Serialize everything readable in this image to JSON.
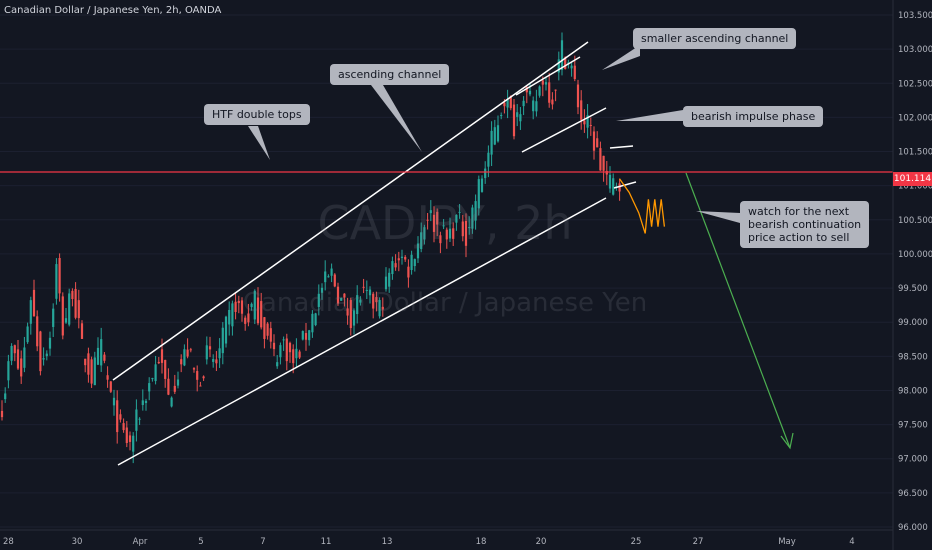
{
  "header": {
    "symbol_title": "Canadian Dollar / Japanese Yen, 2h, OANDA"
  },
  "watermark": {
    "main": "CADJPY, 2h",
    "sub": "Canadian Dollar / Japanese Yen"
  },
  "annotations": {
    "htf_double_tops": "HTF double tops",
    "ascending_channel": "ascending channel",
    "smaller_channel": "smaller ascending channel",
    "bearish_impulse": "bearish impulse phase",
    "watch_next": "watch for the next\nbearish continuation\nprice action to sell"
  },
  "colors": {
    "background": "#131722",
    "bull": "#26a69a",
    "bear": "#ef5350",
    "level_line": "#f23645",
    "projection": "#ff9800",
    "arrow": "#4caf50",
    "trendline": "#ffffff",
    "annotation_bg": "#b2b5be"
  },
  "chart_data": {
    "type": "candlestick",
    "instrument": "Canadian Dollar / Japanese Yen",
    "timeframe": "2h",
    "source": "OANDA",
    "x_tick_labels": [
      "28",
      "30",
      "Apr",
      "5",
      "7",
      "11",
      "13",
      "18",
      "20",
      "25",
      "27",
      "May",
      "4"
    ],
    "y_tick_labels": [
      "103.500",
      "103.000",
      "102.500",
      "102.000",
      "101.500",
      "101.000",
      "100.500",
      "100.000",
      "99.500",
      "99.000",
      "98.500",
      "98.000",
      "97.500",
      "97.000",
      "96.500",
      "96.000"
    ],
    "ylim": [
      96.0,
      103.5
    ],
    "last_price_label": "101.114",
    "horizontal_level": 101.2,
    "close_path": [
      [
        0,
        97.8
      ],
      [
        3,
        98.6
      ],
      [
        6,
        98.2
      ],
      [
        9,
        99.4
      ],
      [
        12,
        98.4
      ],
      [
        15,
        98.8
      ],
      [
        17,
        99.8
      ],
      [
        19,
        98.9
      ],
      [
        22,
        99.5
      ],
      [
        25,
        98.6
      ],
      [
        28,
        98.2
      ],
      [
        31,
        98.6
      ],
      [
        34,
        97.9
      ],
      [
        37,
        97.4
      ],
      [
        40,
        97.2
      ],
      [
        43,
        97.7
      ],
      [
        46,
        98.1
      ],
      [
        49,
        98.5
      ],
      [
        52,
        97.9
      ],
      [
        55,
        98.3
      ],
      [
        58,
        98.6
      ],
      [
        61,
        98.1
      ],
      [
        64,
        98.5
      ],
      [
        67,
        98.4
      ],
      [
        70,
        98.9
      ],
      [
        73,
        99.3
      ],
      [
        76,
        99.0
      ],
      [
        79,
        99.3
      ],
      [
        82,
        98.9
      ],
      [
        85,
        98.5
      ],
      [
        88,
        98.7
      ],
      [
        91,
        98.4
      ],
      [
        94,
        98.7
      ],
      [
        97,
        99.1
      ],
      [
        100,
        99.5
      ],
      [
        103,
        99.7
      ],
      [
        106,
        99.3
      ],
      [
        109,
        99.1
      ],
      [
        112,
        99.4
      ],
      [
        115,
        99.3
      ],
      [
        118,
        99.2
      ],
      [
        121,
        99.7
      ],
      [
        124,
        100.0
      ],
      [
        127,
        99.8
      ],
      [
        130,
        100.2
      ],
      [
        133,
        100.6
      ],
      [
        136,
        100.4
      ],
      [
        139,
        100.2
      ],
      [
        142,
        100.5
      ],
      [
        145,
        100.3
      ],
      [
        148,
        100.8
      ],
      [
        151,
        101.3
      ],
      [
        154,
        101.8
      ],
      [
        157,
        102.3
      ],
      [
        160,
        101.9
      ],
      [
        163,
        102.4
      ],
      [
        166,
        102.1
      ],
      [
        169,
        102.6
      ],
      [
        172,
        102.3
      ],
      [
        175,
        103.0
      ],
      [
        178,
        102.7
      ],
      [
        181,
        102.0
      ],
      [
        184,
        101.8
      ],
      [
        187,
        101.3
      ],
      [
        190,
        101.0
      ],
      [
        193,
        101.1
      ]
    ],
    "projection_path": [
      [
        193,
        101.1
      ],
      [
        196,
        100.9
      ],
      [
        199,
        100.6
      ],
      [
        201,
        100.3
      ],
      [
        202,
        100.8
      ],
      [
        203,
        100.4
      ],
      [
        204,
        100.8
      ],
      [
        205,
        100.4
      ],
      [
        206,
        100.8
      ],
      [
        207,
        100.4
      ]
    ]
  }
}
